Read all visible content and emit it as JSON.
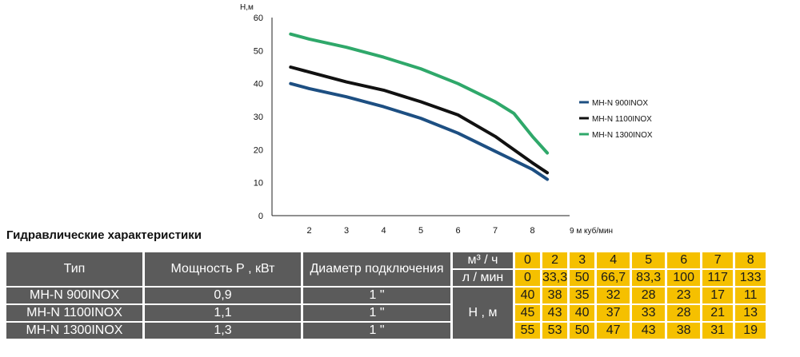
{
  "chart_data": {
    "type": "line",
    "ylabel": "Н,м",
    "xlabel": "9 м куб/мин",
    "xlim": [
      1,
      9
    ],
    "ylim": [
      0,
      60
    ],
    "x_ticks": [
      2,
      3,
      4,
      5,
      6,
      7,
      8
    ],
    "y_ticks": [
      0,
      10,
      20,
      30,
      40,
      50,
      60
    ],
    "grid": false,
    "legend_position": "right",
    "series": [
      {
        "name": "MH-N 900INOX",
        "color": "#1d4f82",
        "x": [
          1.5,
          2,
          3,
          4,
          5,
          6,
          7,
          8,
          8.4
        ],
        "y": [
          40,
          38.5,
          36,
          33,
          29.5,
          25,
          19.5,
          14,
          11
        ]
      },
      {
        "name": "MH-N 1100INOX",
        "color": "#111111",
        "x": [
          1.5,
          2,
          3,
          4,
          5,
          6,
          7,
          8,
          8.4
        ],
        "y": [
          45,
          43.5,
          40.5,
          38,
          34.5,
          30.5,
          24,
          16,
          13
        ]
      },
      {
        "name": "MH-N 1300INOX",
        "color": "#2fa86a",
        "x": [
          1.5,
          2,
          3,
          4,
          5,
          6,
          7,
          7.5,
          8,
          8.4
        ],
        "y": [
          55,
          53.5,
          51,
          48,
          44.5,
          40,
          34.5,
          31,
          24,
          19
        ]
      }
    ]
  },
  "table": {
    "title": "Гидравлические характеристики",
    "head_type": "Тип",
    "head_power": "Мощность Р , кВт",
    "head_diameter": "Диаметр подключения",
    "unit_m3": "м³ / ч",
    "unit_lmin": "л / мин",
    "unit_h": "Н , м",
    "flow_m3": [
      "0",
      "2",
      "3",
      "4",
      "5",
      "6",
      "7",
      "8"
    ],
    "flow_lmin": [
      "0",
      "33,3",
      "50",
      "66,7",
      "83,3",
      "100",
      "117",
      "133"
    ],
    "rows": [
      {
        "type": "MH-N 900INOX",
        "power": "0,9",
        "diameter": "1 \"",
        "heads": [
          "40",
          "38",
          "35",
          "32",
          "28",
          "23",
          "17",
          "11"
        ]
      },
      {
        "type": "MH-N 1100INOX",
        "power": "1,1",
        "diameter": "1 \"",
        "heads": [
          "45",
          "43",
          "40",
          "37",
          "33",
          "28",
          "21",
          "13"
        ]
      },
      {
        "type": "MH-N 1300INOX",
        "power": "1,3",
        "diameter": "1 \"",
        "heads": [
          "55",
          "53",
          "50",
          "47",
          "43",
          "38",
          "31",
          "19"
        ]
      }
    ]
  }
}
